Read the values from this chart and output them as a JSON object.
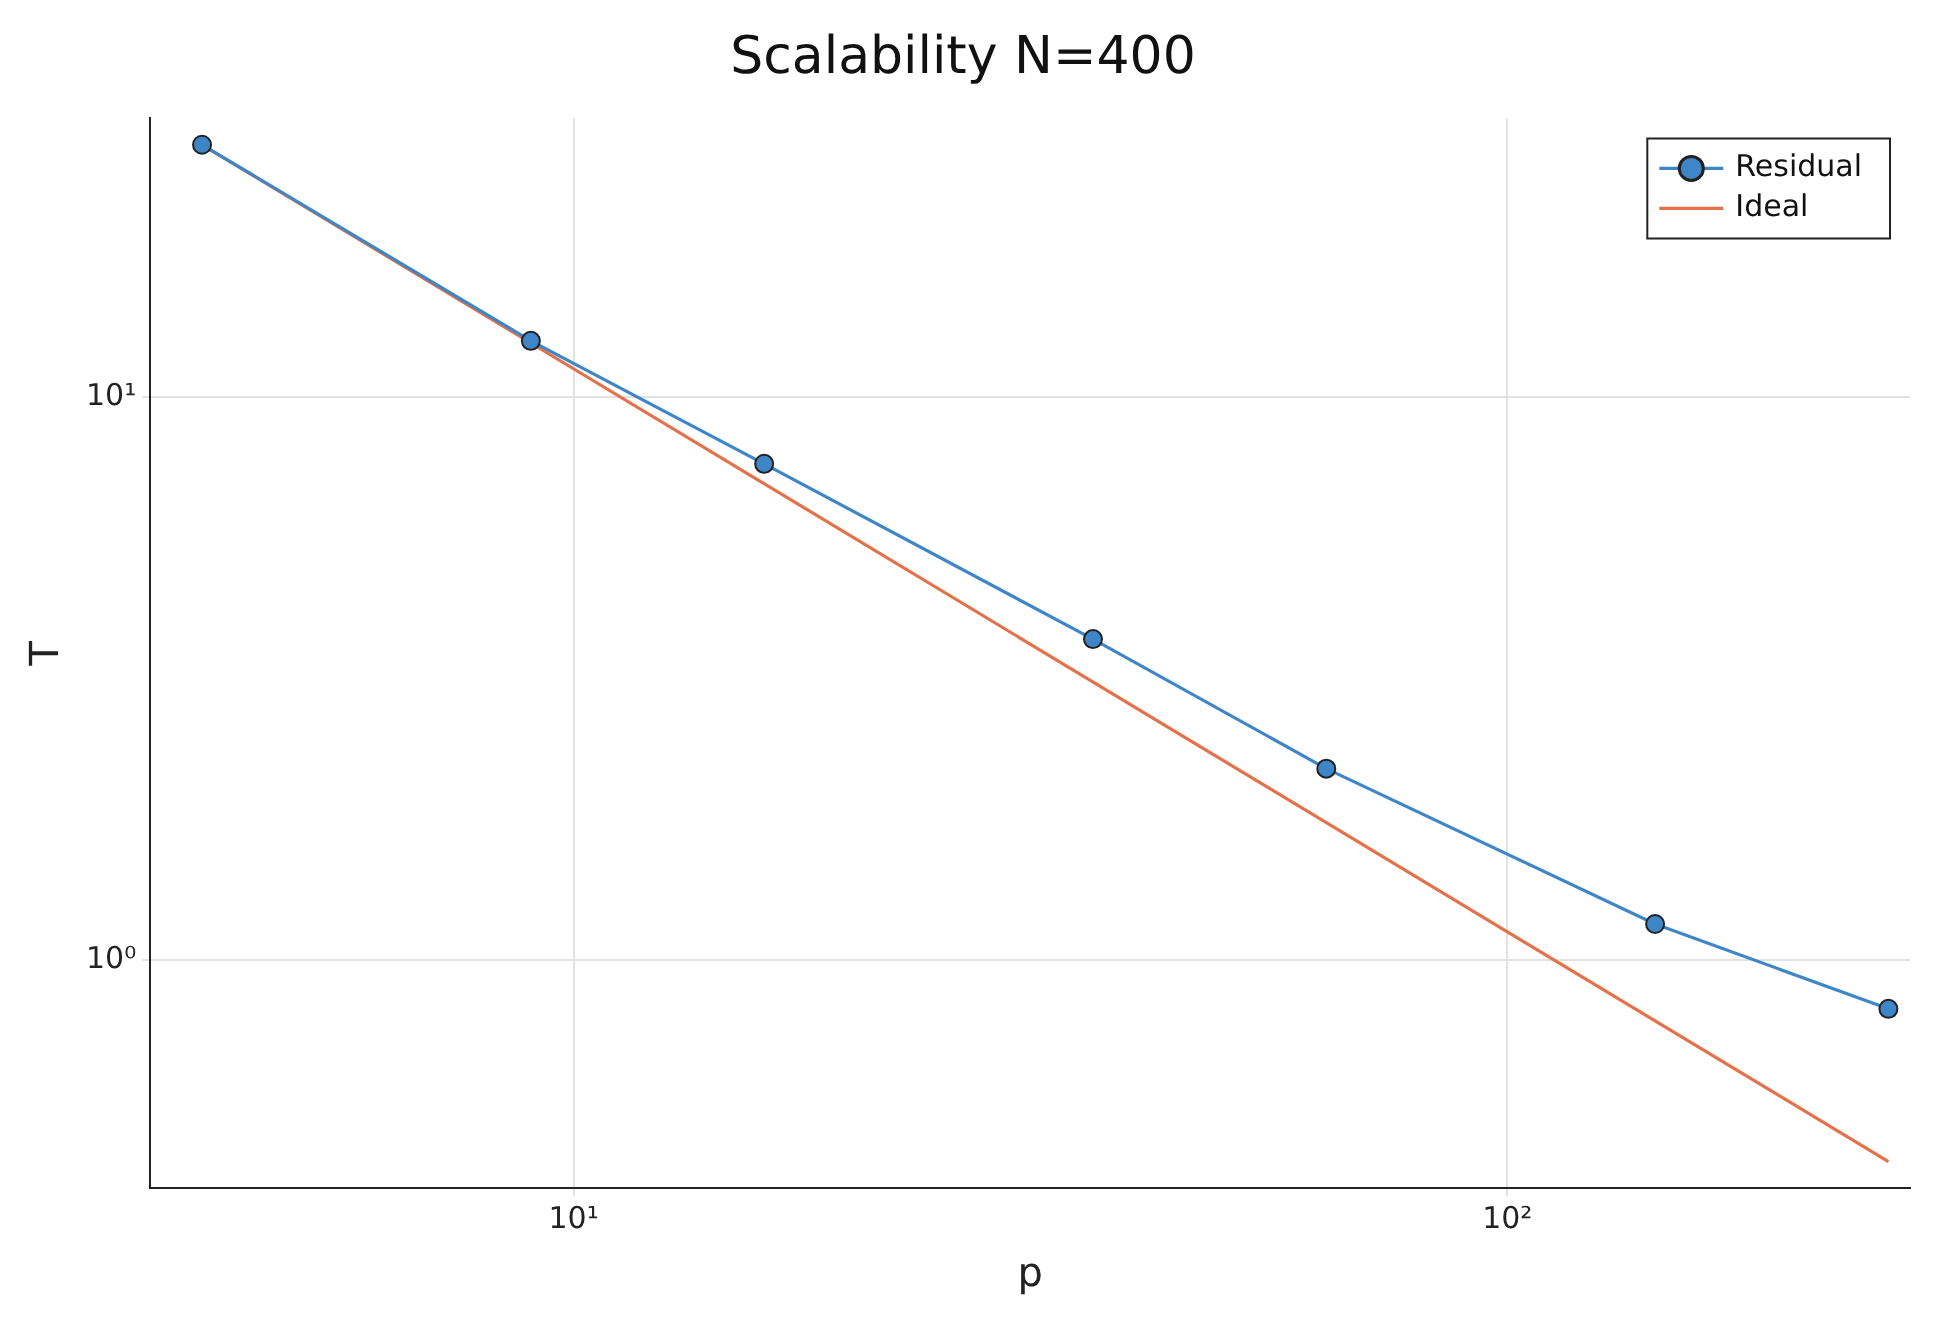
{
  "chart_data": {
    "type": "line",
    "title": "Scalability N=400",
    "xlabel": "p",
    "ylabel": "T",
    "log": "xy",
    "grid": true,
    "legend": "top right",
    "xlim": [
      3.52,
      270
    ],
    "ylim": [
      0.394,
      31.3
    ],
    "xticks": [
      {
        "value": 10,
        "label": "10¹"
      },
      {
        "value": 100,
        "label": "10²"
      }
    ],
    "yticks": [
      {
        "value": 1,
        "label": "10⁰"
      },
      {
        "value": 10,
        "label": "10¹"
      }
    ],
    "series": [
      {
        "name": "Residual",
        "color": "#3f86c8",
        "marker": "circle",
        "x": [
          4,
          9,
          16,
          36,
          64,
          144,
          256
        ],
        "values": [
          28.1,
          12.6,
          7.62,
          3.72,
          2.19,
          1.16,
          0.82
        ]
      },
      {
        "name": "Ideal",
        "color": "#e3724a",
        "marker": "none",
        "x": [
          4,
          256
        ],
        "values": [
          28.1,
          0.439
        ]
      }
    ]
  }
}
